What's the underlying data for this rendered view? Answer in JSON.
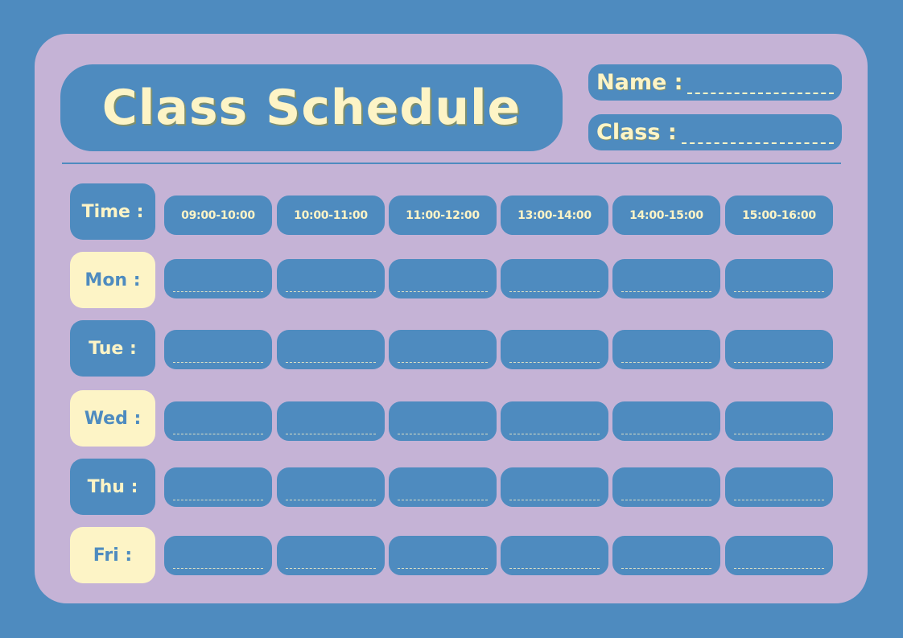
{
  "title": "Class Schedule",
  "fields": {
    "name_label": "Name :",
    "class_label": "Class :"
  },
  "colors": {
    "background": "#4e8bbf",
    "card": "#c5b3d6",
    "cream": "#fdf4c6"
  },
  "time_label": "Time :",
  "time_slots": [
    "09:00-10:00",
    "10:00-11:00",
    "11:00-12:00",
    "13:00-14:00",
    "14:00-15:00",
    "15:00-16:00"
  ],
  "days": [
    {
      "label": "Mon :",
      "style": "cream"
    },
    {
      "label": "Tue :",
      "style": "blue"
    },
    {
      "label": "Wed :",
      "style": "cream"
    },
    {
      "label": "Thu :",
      "style": "blue"
    },
    {
      "label": "Fri :",
      "style": "cream"
    }
  ]
}
